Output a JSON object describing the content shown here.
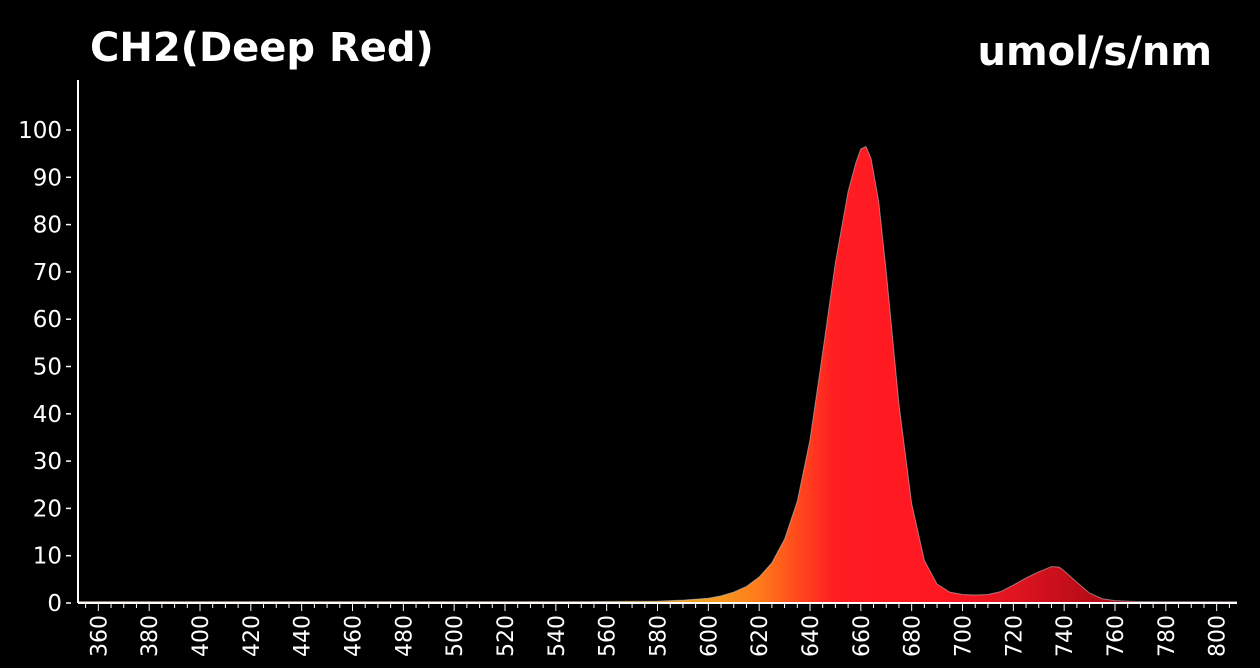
{
  "chart_data": {
    "type": "area",
    "title": "CH2(Deep Red)",
    "ylabel": "umol/s/nm",
    "xlabel": "",
    "xlim": [
      352,
      808
    ],
    "ylim": [
      0,
      100
    ],
    "y_ticks": [
      0,
      10,
      20,
      30,
      40,
      50,
      60,
      70,
      80,
      90,
      100
    ],
    "x_ticks": [
      360,
      380,
      400,
      420,
      440,
      460,
      480,
      500,
      520,
      540,
      560,
      580,
      600,
      620,
      640,
      660,
      680,
      700,
      720,
      740,
      760,
      780,
      800
    ],
    "grid": false,
    "legend": "none",
    "series": [
      {
        "x": [
          352,
          400,
          450,
          500,
          550,
          580,
          590,
          600,
          605,
          610,
          615,
          620,
          625,
          630,
          635,
          640,
          645,
          650,
          655,
          658,
          660,
          662,
          664,
          667,
          670,
          675,
          680,
          685,
          690,
          695,
          700,
          705,
          710,
          715,
          720,
          725,
          730,
          735,
          738,
          740,
          745,
          750,
          755,
          760,
          770,
          780,
          790,
          800,
          808
        ],
        "values": [
          0.3,
          0.3,
          0.3,
          0.3,
          0.3,
          0.4,
          0.6,
          1.0,
          1.5,
          2.3,
          3.5,
          5.5,
          8.5,
          13.5,
          21.5,
          34.5,
          53,
          72,
          87,
          93,
          96,
          96.5,
          94,
          85,
          70,
          42,
          21,
          9,
          4,
          2.3,
          1.8,
          1.7,
          1.8,
          2.4,
          3.8,
          5.3,
          6.6,
          7.7,
          7.6,
          6.8,
          4.4,
          2.1,
          0.9,
          0.5,
          0.3,
          0.3,
          0.3,
          0.3,
          0.3
        ]
      }
    ],
    "colors": {
      "background": "#000000",
      "axis": "#ffffff",
      "spectrum_stops": [
        {
          "nm": 580,
          "color": "#e8a030"
        },
        {
          "nm": 600,
          "color": "#f5a020"
        },
        {
          "nm": 620,
          "color": "#ff7a1a"
        },
        {
          "nm": 635,
          "color": "#ff4a1c"
        },
        {
          "nm": 650,
          "color": "#ff1c22"
        },
        {
          "nm": 690,
          "color": "#ff1822"
        },
        {
          "nm": 720,
          "color": "#e01420"
        },
        {
          "nm": 750,
          "color": "#b80c18"
        },
        {
          "nm": 800,
          "color": "#8a0812"
        }
      ]
    }
  }
}
